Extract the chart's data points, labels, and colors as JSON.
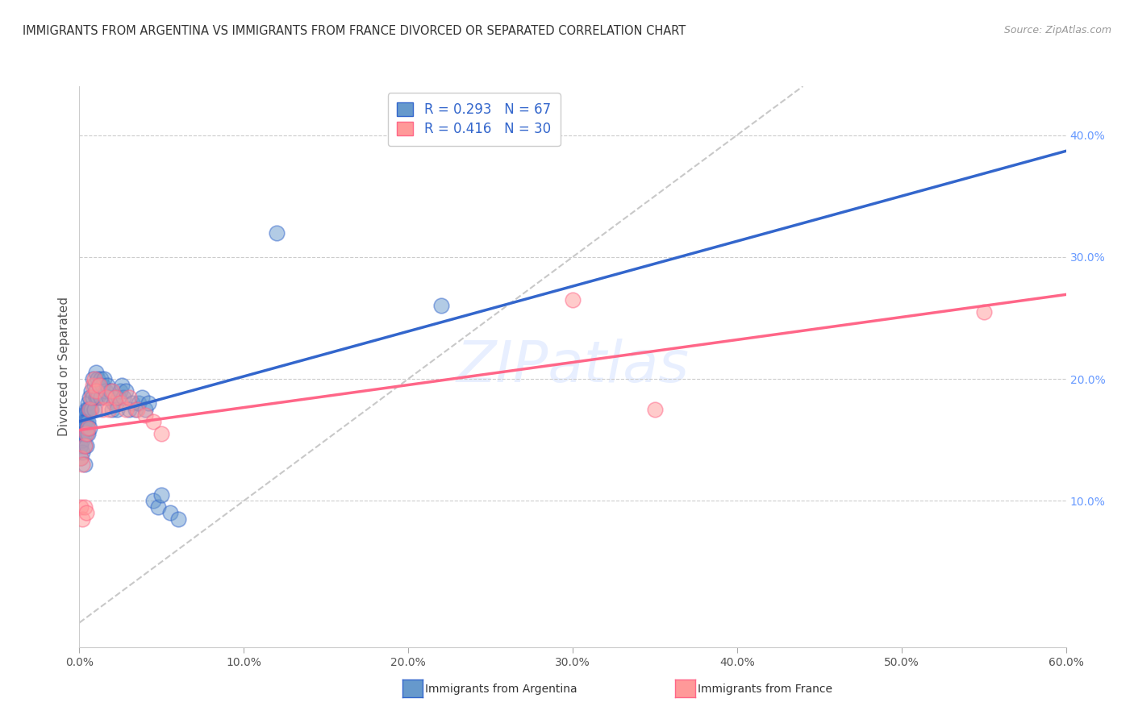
{
  "title": "IMMIGRANTS FROM ARGENTINA VS IMMIGRANTS FROM FRANCE DIVORCED OR SEPARATED CORRELATION CHART",
  "source": "Source: ZipAtlas.com",
  "ylabel": "Divorced or Separated",
  "xlim": [
    0.0,
    0.6
  ],
  "ylim": [
    -0.02,
    0.44
  ],
  "xticks": [
    0.0,
    0.1,
    0.2,
    0.3,
    0.4,
    0.5,
    0.6
  ],
  "xtick_labels": [
    "0.0%",
    "10.0%",
    "20.0%",
    "30.0%",
    "40.0%",
    "50.0%",
    "60.0%"
  ],
  "yticks_right": [
    0.1,
    0.2,
    0.3,
    0.4
  ],
  "ytick_labels_right": [
    "10.0%",
    "20.0%",
    "30.0%",
    "40.0%"
  ],
  "legend_label1": "R = 0.293   N = 67",
  "legend_label2": "R = 0.416   N = 30",
  "color_argentina": "#6699CC",
  "color_france": "#FF9999",
  "color_argentina_edge": "#3366CC",
  "color_france_edge": "#FF6688",
  "color_argentina_line": "#3366CC",
  "color_france_line": "#FF6688",
  "color_diagonal": "#BBBBBB",
  "watermark_text": "ZIPatlas",
  "bg_color": "#FFFFFF",
  "grid_color": "#CCCCCC",
  "argentina_x": [
    0.001,
    0.001,
    0.001,
    0.001,
    0.002,
    0.002,
    0.002,
    0.002,
    0.002,
    0.003,
    0.003,
    0.003,
    0.003,
    0.003,
    0.004,
    0.004,
    0.004,
    0.004,
    0.005,
    0.005,
    0.005,
    0.005,
    0.006,
    0.006,
    0.006,
    0.007,
    0.007,
    0.008,
    0.008,
    0.009,
    0.009,
    0.01,
    0.01,
    0.011,
    0.011,
    0.012,
    0.013,
    0.013,
    0.014,
    0.015,
    0.016,
    0.017,
    0.018,
    0.019,
    0.02,
    0.021,
    0.022,
    0.023,
    0.024,
    0.025,
    0.026,
    0.027,
    0.028,
    0.03,
    0.032,
    0.034,
    0.036,
    0.038,
    0.04,
    0.042,
    0.045,
    0.048,
    0.05,
    0.055,
    0.06,
    0.12,
    0.22
  ],
  "argentina_y": [
    0.155,
    0.16,
    0.145,
    0.135,
    0.15,
    0.165,
    0.17,
    0.155,
    0.14,
    0.17,
    0.165,
    0.155,
    0.145,
    0.13,
    0.175,
    0.165,
    0.155,
    0.145,
    0.18,
    0.175,
    0.165,
    0.155,
    0.185,
    0.175,
    0.16,
    0.19,
    0.175,
    0.2,
    0.185,
    0.195,
    0.175,
    0.205,
    0.185,
    0.2,
    0.185,
    0.195,
    0.2,
    0.185,
    0.195,
    0.2,
    0.19,
    0.195,
    0.185,
    0.19,
    0.175,
    0.18,
    0.185,
    0.175,
    0.185,
    0.19,
    0.195,
    0.185,
    0.19,
    0.175,
    0.18,
    0.175,
    0.18,
    0.185,
    0.175,
    0.18,
    0.1,
    0.095,
    0.105,
    0.09,
    0.085,
    0.32,
    0.26
  ],
  "france_x": [
    0.001,
    0.001,
    0.002,
    0.002,
    0.003,
    0.003,
    0.004,
    0.004,
    0.005,
    0.006,
    0.007,
    0.008,
    0.009,
    0.01,
    0.012,
    0.014,
    0.016,
    0.018,
    0.02,
    0.022,
    0.025,
    0.028,
    0.03,
    0.035,
    0.04,
    0.045,
    0.05,
    0.3,
    0.35,
    0.55
  ],
  "france_y": [
    0.135,
    0.095,
    0.13,
    0.085,
    0.145,
    0.095,
    0.155,
    0.09,
    0.16,
    0.175,
    0.185,
    0.195,
    0.2,
    0.19,
    0.195,
    0.175,
    0.185,
    0.175,
    0.19,
    0.185,
    0.18,
    0.175,
    0.185,
    0.175,
    0.17,
    0.165,
    0.155,
    0.265,
    0.175,
    0.255
  ],
  "bottom_label1": "Immigrants from Argentina",
  "bottom_label2": "Immigrants from France"
}
